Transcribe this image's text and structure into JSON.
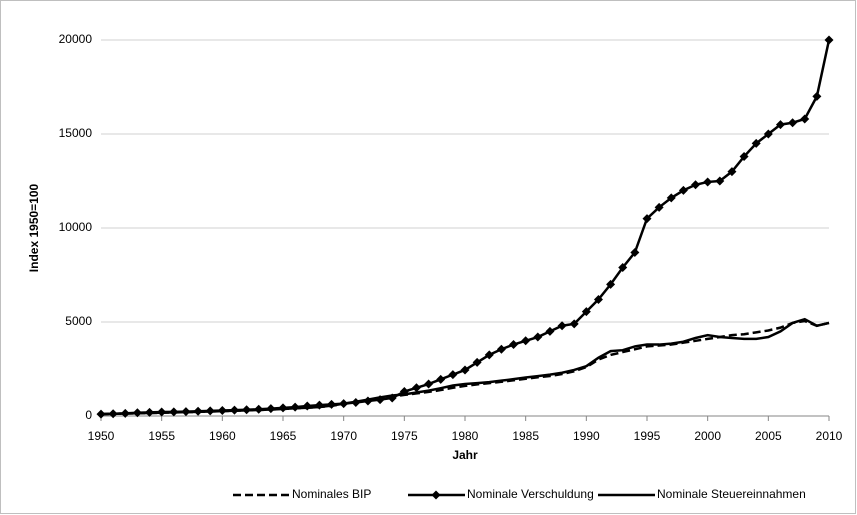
{
  "chart_data": {
    "type": "line",
    "xlabel": "Jahr",
    "ylabel": "Index 1950=100",
    "x": [
      1950,
      1951,
      1952,
      1953,
      1954,
      1955,
      1956,
      1957,
      1958,
      1959,
      1960,
      1961,
      1962,
      1963,
      1964,
      1965,
      1966,
      1967,
      1968,
      1969,
      1970,
      1971,
      1972,
      1973,
      1974,
      1975,
      1976,
      1977,
      1978,
      1979,
      1980,
      1981,
      1982,
      1983,
      1984,
      1985,
      1986,
      1987,
      1988,
      1989,
      1990,
      1991,
      1992,
      1993,
      1994,
      1995,
      1996,
      1997,
      1998,
      1999,
      2000,
      2001,
      2002,
      2003,
      2004,
      2005,
      2006,
      2007,
      2008,
      2009,
      2010
    ],
    "xlim": [
      1950,
      2010
    ],
    "xticks": [
      1950,
      1955,
      1960,
      1965,
      1970,
      1975,
      1980,
      1985,
      1990,
      1995,
      2000,
      2005,
      2010
    ],
    "ylim": [
      0,
      20000
    ],
    "yticks": [
      0,
      5000,
      10000,
      15000,
      20000
    ],
    "grid": true,
    "legend": "bottom",
    "series": [
      {
        "name": "Nominales BIP",
        "color": "#000000",
        "line_style": "dashed",
        "marker": "none",
        "values": [
          100,
          115,
          130,
          145,
          160,
          175,
          190,
          205,
          220,
          240,
          260,
          280,
          300,
          320,
          345,
          370,
          410,
          440,
          480,
          540,
          640,
          740,
          840,
          940,
          1040,
          1120,
          1200,
          1280,
          1380,
          1500,
          1600,
          1680,
          1750,
          1820,
          1900,
          1980,
          2060,
          2130,
          2230,
          2380,
          2600,
          3000,
          3250,
          3400,
          3550,
          3700,
          3750,
          3800,
          3900,
          4000,
          4100,
          4200,
          4300,
          4350,
          4450,
          4550,
          4700,
          4950,
          5050,
          4800,
          4950
        ]
      },
      {
        "name": "Nominale Verschuldung",
        "color": "#000000",
        "line_style": "solid",
        "marker": "diamond",
        "values": [
          100,
          120,
          140,
          170,
          190,
          210,
          220,
          230,
          250,
          270,
          290,
          310,
          330,
          360,
          390,
          430,
          470,
          530,
          580,
          620,
          660,
          720,
          800,
          870,
          960,
          1300,
          1500,
          1700,
          1950,
          2200,
          2450,
          2850,
          3250,
          3550,
          3800,
          4000,
          4200,
          4500,
          4800,
          4900,
          5550,
          6200,
          7000,
          7900,
          8700,
          10500,
          11100,
          11600,
          12000,
          12300,
          12450,
          12500,
          13000,
          13800,
          14500,
          15000,
          15500,
          15600,
          15800,
          17000,
          20000
        ]
      },
      {
        "name": "Nominale Steuereinnahmen",
        "color": "#000000",
        "line_style": "solid",
        "marker": "none",
        "values": [
          100,
          115,
          130,
          145,
          160,
          175,
          190,
          205,
          220,
          240,
          260,
          280,
          300,
          320,
          345,
          370,
          410,
          440,
          480,
          550,
          660,
          760,
          870,
          990,
          1090,
          1150,
          1250,
          1350,
          1480,
          1620,
          1700,
          1750,
          1800,
          1880,
          1960,
          2050,
          2120,
          2200,
          2300,
          2450,
          2650,
          3100,
          3450,
          3500,
          3700,
          3800,
          3800,
          3850,
          3950,
          4150,
          4300,
          4200,
          4150,
          4100,
          4100,
          4200,
          4500,
          4950,
          5150,
          4800,
          4950
        ]
      }
    ]
  }
}
